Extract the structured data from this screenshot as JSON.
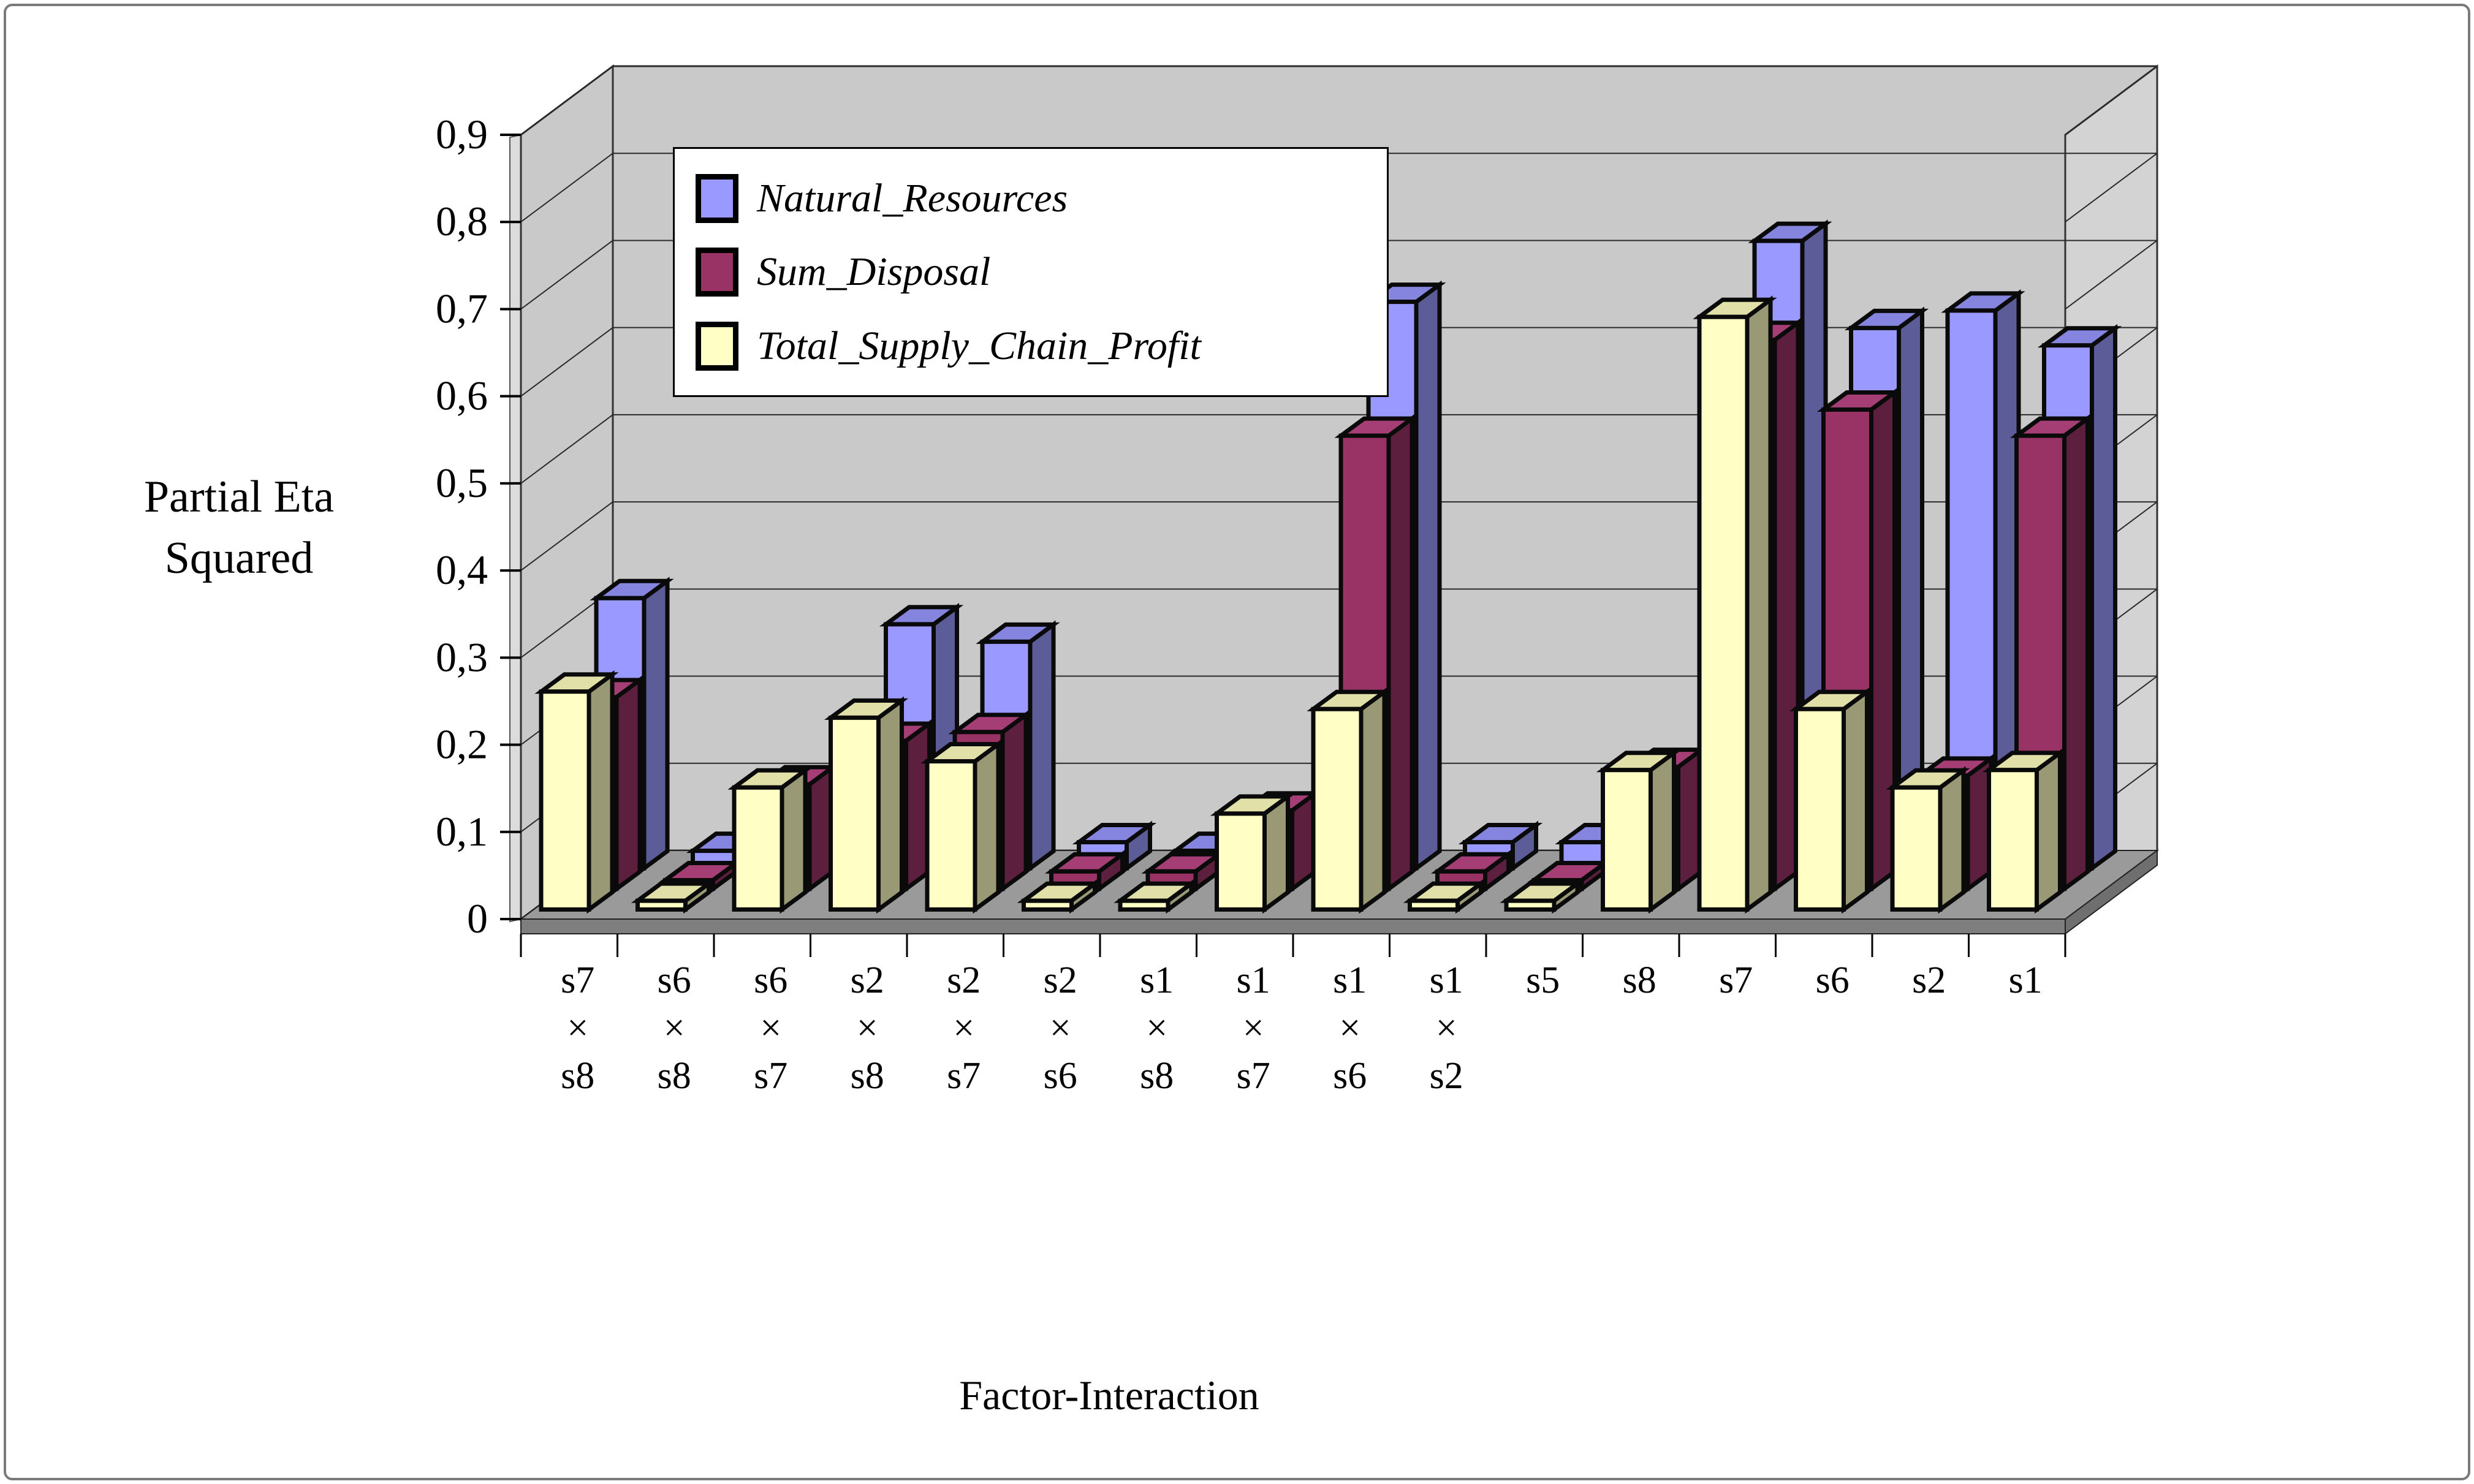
{
  "axes": {
    "y_title_lines": [
      "Partial Eta",
      "Squared"
    ],
    "x_title": "Factor-Interaction",
    "y_ticks": [
      "0",
      "0,1",
      "0,2",
      "0,3",
      "0,4",
      "0,5",
      "0,6",
      "0,7",
      "0,8",
      "0,9"
    ],
    "y_max": 0.9,
    "y_tick_step": 0.1,
    "decimal_separator": ","
  },
  "chart_data": {
    "type": "bar",
    "projection": "3d-column",
    "title": "",
    "xlabel": "Factor-Interaction",
    "ylabel": "Partial Eta Squared",
    "ylim": [
      0,
      0.9
    ],
    "grid": true,
    "legend_position": "top-left-inset",
    "categories": [
      "s7 × s8",
      "s6 × s8",
      "s6 × s7",
      "s2 × s8",
      "s2 × s7",
      "s2 × s6",
      "s1 × s8",
      "s1 × s7",
      "s1 × s6",
      "s1 × s2",
      "s5",
      "s8",
      "s7",
      "s6",
      "s2",
      "s1"
    ],
    "category_label_lines": [
      [
        "s7",
        "×",
        "s8"
      ],
      [
        "s6",
        "×",
        "s8"
      ],
      [
        "s6",
        "×",
        "s7"
      ],
      [
        "s2",
        "×",
        "s8"
      ],
      [
        "s2",
        "×",
        "s7"
      ],
      [
        "s2",
        "×",
        "s6"
      ],
      [
        "s1",
        "×",
        "s8"
      ],
      [
        "s1",
        "×",
        "s7"
      ],
      [
        "s1",
        "×",
        "s6"
      ],
      [
        "s1",
        "×",
        "s2"
      ],
      [
        "s5"
      ],
      [
        "s8"
      ],
      [
        "s7"
      ],
      [
        "s6"
      ],
      [
        "s2"
      ],
      [
        "s1"
      ]
    ],
    "series": [
      {
        "name": "Natural_Resources",
        "color": "#9999FF",
        "depth_row": "back",
        "values": [
          0.31,
          0.02,
          0.03,
          0.28,
          0.26,
          0.03,
          0.02,
          0.03,
          0.65,
          0.03,
          0.03,
          0.08,
          0.72,
          0.62,
          0.64,
          0.6
        ]
      },
      {
        "name": "Sum_Disposal",
        "color": "#993366",
        "depth_row": "middle",
        "values": [
          0.22,
          0.01,
          0.12,
          0.17,
          0.18,
          0.02,
          0.02,
          0.09,
          0.52,
          0.02,
          0.01,
          0.14,
          0.63,
          0.55,
          0.13,
          0.52
        ]
      },
      {
        "name": "Total_Supply_Chain_Profit",
        "color": "#FFFFC5",
        "depth_row": "front",
        "values": [
          0.25,
          0.01,
          0.14,
          0.22,
          0.17,
          0.01,
          0.01,
          0.11,
          0.23,
          0.01,
          0.01,
          0.16,
          0.68,
          0.23,
          0.14,
          0.16
        ]
      }
    ],
    "colors": {
      "back_wall": "#C9C9C9",
      "right_wall": "#D3D3D3",
      "left_wall": "#C9C9C9",
      "wall_lip": "#DCDCDC",
      "floor_top": "#9A9A9A",
      "floor_front": "#7E7E7E",
      "floor_side": "#6F6F6F",
      "bar_outline": "#0A0A0A",
      "gridline": "#2A2A2A"
    }
  }
}
